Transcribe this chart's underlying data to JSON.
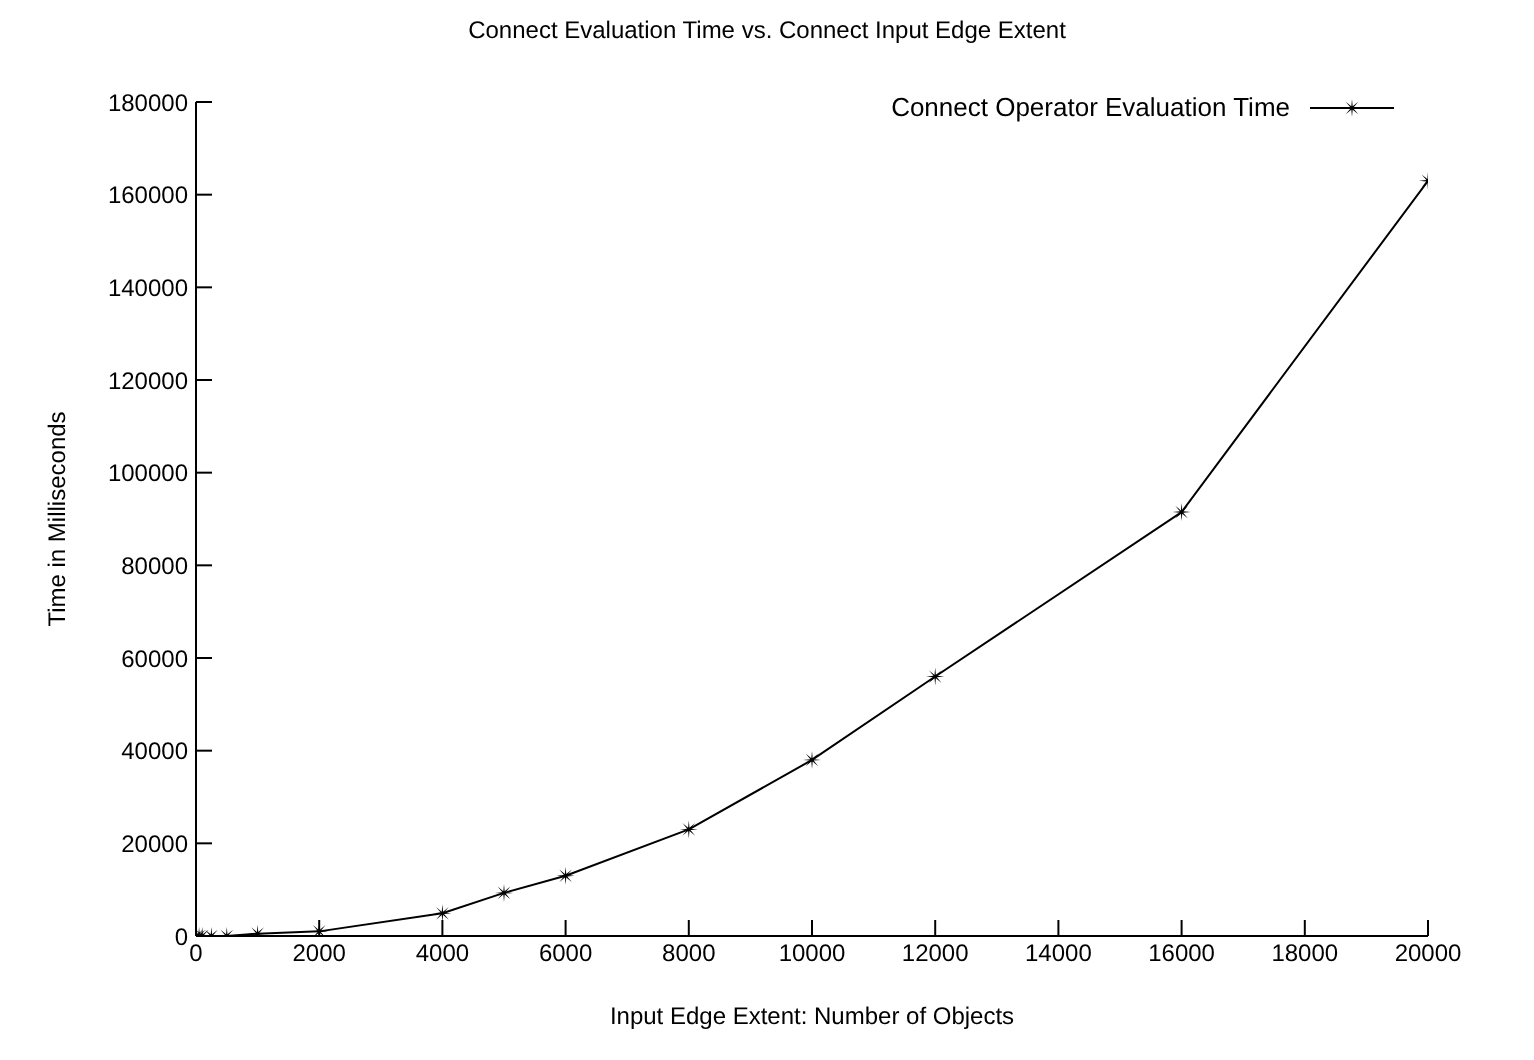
{
  "chart_data": {
    "type": "line",
    "title": "Connect Evaluation Time vs. Connect Input Edge Extent",
    "xlabel": "Input Edge Extent: Number of Objects",
    "ylabel": "Time in Milliseconds",
    "x": [
      10,
      50,
      100,
      250,
      500,
      1000,
      2000,
      4000,
      5000,
      6000,
      8000,
      10000,
      12000,
      16000,
      20000
    ],
    "series": [
      {
        "name": "Connect Operator Evaluation Time",
        "color": "#000000",
        "values": [
          0,
          0,
          0,
          0,
          0,
          500,
          1000,
          4900,
          9300,
          13000,
          23000,
          38000,
          56000,
          91500,
          163000
        ]
      }
    ],
    "xlim": [
      0,
      20000
    ],
    "xticks": [
      0,
      2000,
      4000,
      6000,
      8000,
      10000,
      12000,
      14000,
      16000,
      18000,
      20000
    ],
    "ylim": [
      0,
      180000
    ],
    "yticks": [
      0,
      20000,
      40000,
      60000,
      80000,
      100000,
      120000,
      140000,
      160000,
      180000
    ],
    "grid": false,
    "legend": "top right",
    "marker": "star",
    "line_style": "solid"
  }
}
